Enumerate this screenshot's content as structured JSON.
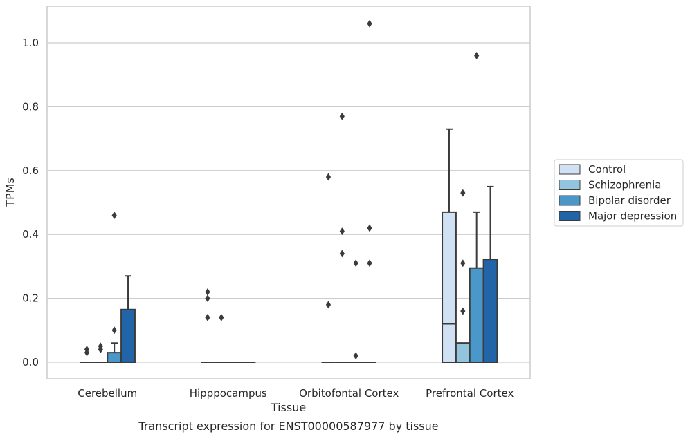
{
  "chart_data": {
    "type": "box",
    "title": "",
    "caption": "Transcript expression for ENST00000587977 by tissue",
    "xlabel": "Tissue",
    "ylabel": "TPMs",
    "ylim": [
      -0.05,
      1.12
    ],
    "yticks": [
      0.0,
      0.2,
      0.4,
      0.6,
      0.8,
      1.0
    ],
    "ytick_labels": [
      "0.0",
      "0.2",
      "0.4",
      "0.6",
      "0.8",
      "1.0"
    ],
    "grid": "horizontal",
    "legend_position": "right",
    "categories": [
      "Cerebellum",
      "Hipppocampus",
      "Orbitofontal Cortex",
      "Prefrontal Cortex"
    ],
    "series": [
      {
        "name": "Control",
        "color": "#cfe1f2",
        "boxes": [
          {
            "q1": 0.0,
            "median": 0.0,
            "q3": 0.0,
            "whisker_low": 0.0,
            "whisker_high": 0.0,
            "outliers": [
              0.03,
              0.04
            ]
          },
          {
            "q1": 0.0,
            "median": 0.0,
            "q3": 0.0,
            "whisker_low": 0.0,
            "whisker_high": 0.0,
            "outliers": [
              0.14,
              0.2,
              0.22
            ]
          },
          {
            "q1": 0.0,
            "median": 0.0,
            "q3": 0.0,
            "whisker_low": 0.0,
            "whisker_high": 0.0,
            "outliers": [
              0.18,
              0.58
            ]
          },
          {
            "q1": 0.0,
            "median": 0.12,
            "q3": 0.47,
            "whisker_low": 0.0,
            "whisker_high": 0.73,
            "outliers": []
          }
        ]
      },
      {
        "name": "Schizophrenia",
        "color": "#93c4de",
        "boxes": [
          {
            "q1": 0.0,
            "median": 0.0,
            "q3": 0.0,
            "whisker_low": 0.0,
            "whisker_high": 0.0,
            "outliers": [
              0.04,
              0.05
            ]
          },
          {
            "q1": 0.0,
            "median": 0.0,
            "q3": 0.0,
            "whisker_low": 0.0,
            "whisker_high": 0.0,
            "outliers": [
              0.14
            ]
          },
          {
            "q1": 0.0,
            "median": 0.0,
            "q3": 0.0,
            "whisker_low": 0.0,
            "whisker_high": 0.0,
            "outliers": [
              0.34,
              0.41,
              0.77
            ]
          },
          {
            "q1": 0.0,
            "median": 0.06,
            "q3": 0.06,
            "whisker_low": 0.0,
            "whisker_high": 0.06,
            "outliers": [
              0.16,
              0.31,
              0.53
            ]
          }
        ]
      },
      {
        "name": "Bipolar disorder",
        "color": "#4a98c9",
        "boxes": [
          {
            "q1": 0.0,
            "median": 0.0,
            "q3": 0.03,
            "whisker_low": 0.0,
            "whisker_high": 0.06,
            "outliers": [
              0.1,
              0.46
            ]
          },
          {
            "q1": 0.0,
            "median": 0.0,
            "q3": 0.0,
            "whisker_low": 0.0,
            "whisker_high": 0.0,
            "outliers": []
          },
          {
            "q1": 0.0,
            "median": 0.0,
            "q3": 0.0,
            "whisker_low": 0.0,
            "whisker_high": 0.0,
            "outliers": [
              0.02,
              0.31
            ]
          },
          {
            "q1": 0.0,
            "median": 0.0,
            "q3": 0.295,
            "whisker_low": 0.0,
            "whisker_high": 0.47,
            "outliers": [
              0.96
            ]
          }
        ]
      },
      {
        "name": "Major depression",
        "color": "#2264a8",
        "boxes": [
          {
            "q1": 0.0,
            "median": 0.0,
            "q3": 0.165,
            "whisker_low": 0.0,
            "whisker_high": 0.27,
            "outliers": []
          },
          {
            "q1": 0.0,
            "median": 0.0,
            "q3": 0.0,
            "whisker_low": 0.0,
            "whisker_high": 0.0,
            "outliers": []
          },
          {
            "q1": 0.0,
            "median": 0.0,
            "q3": 0.0,
            "whisker_low": 0.0,
            "whisker_high": 0.0,
            "outliers": [
              0.31,
              0.42,
              1.06
            ]
          },
          {
            "q1": 0.0,
            "median": 0.0,
            "q3": 0.322,
            "whisker_low": 0.0,
            "whisker_high": 0.55,
            "outliers": []
          }
        ]
      }
    ],
    "edge_color": "#3b3b3b",
    "grid_color": "#cccccc"
  }
}
